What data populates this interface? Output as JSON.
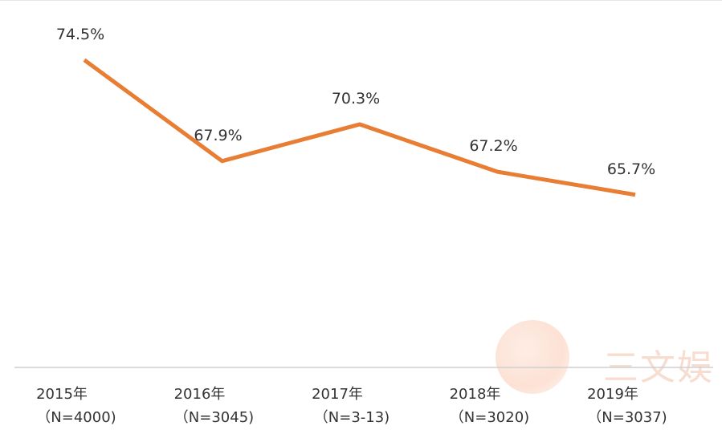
{
  "chart_data": {
    "type": "line",
    "title": "",
    "categories": [
      "2015年",
      "2016年",
      "2017年",
      "2018年",
      "2019年"
    ],
    "category_sublabels": [
      "（N=4000)",
      "（N=3045)",
      "（N=3-13)",
      "（N=3020)",
      "（N=3037)"
    ],
    "values": [
      74.5,
      67.9,
      70.3,
      67.2,
      65.7
    ],
    "data_labels": [
      "74.5%",
      "67.9%",
      "70.3%",
      "67.2%",
      "65.7%"
    ],
    "ylim": [
      55,
      78
    ],
    "line_color": "#e87d34",
    "axis_color": "#cfcfcf",
    "label_color": "#333333",
    "grid": false
  },
  "watermark": {
    "text": "三文娱"
  }
}
